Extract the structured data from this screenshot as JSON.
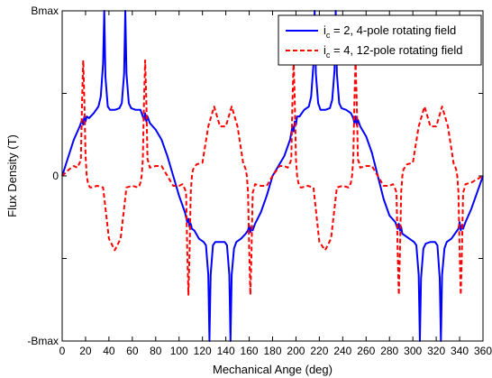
{
  "chart_data": {
    "type": "line",
    "title": "",
    "xlabel": "Mechanical Ange (deg)",
    "ylabel": "Flux Density (T)",
    "xlim": [
      0,
      360
    ],
    "ylim": [
      -1,
      1
    ],
    "x_ticks": [
      0,
      20,
      40,
      60,
      80,
      100,
      120,
      140,
      160,
      180,
      200,
      220,
      240,
      260,
      280,
      300,
      320,
      340,
      360
    ],
    "y_ticks": [
      {
        "value": 1,
        "label": "Bmax"
      },
      {
        "value": 0,
        "label": "0"
      },
      {
        "value": -1,
        "label": "-Bmax"
      }
    ],
    "y_minor_ticks": [
      0.5,
      -0.5
    ],
    "grid": false,
    "legend_position": "top-right",
    "series": [
      {
        "name": "ic = 2, 4-pole rotating field",
        "name_parts": {
          "pre": "i",
          "sub": "c",
          "post": " = 2, 4-pole rotating field"
        },
        "color": "#0000ff",
        "style": "solid",
        "x": [
          0,
          10,
          15,
          17,
          18,
          19,
          20,
          21,
          23,
          27,
          31,
          33,
          35,
          36,
          37,
          39,
          41,
          45,
          49,
          51,
          53,
          54,
          55,
          57,
          59,
          63,
          67,
          69,
          70,
          71,
          72,
          73,
          75,
          80,
          85,
          90,
          95,
          100,
          105,
          107,
          108,
          109,
          110,
          111,
          113,
          117,
          121,
          123,
          125,
          126,
          127,
          129,
          131,
          135,
          139,
          141,
          143,
          144,
          145,
          147,
          149,
          153,
          157,
          159,
          160,
          161,
          162,
          163,
          165,
          170,
          175,
          180,
          190,
          195,
          197,
          198,
          199,
          200,
          201,
          203,
          207,
          211,
          213,
          215,
          216,
          217,
          219,
          221,
          225,
          229,
          231,
          233,
          234,
          235,
          237,
          239,
          243,
          247,
          249,
          250,
          251,
          252,
          253,
          255,
          260,
          265,
          270,
          275,
          280,
          285,
          287,
          288,
          289,
          290,
          291,
          293,
          297,
          301,
          303,
          305,
          306,
          307,
          309,
          311,
          315,
          319,
          321,
          323,
          324,
          325,
          327,
          329,
          333,
          337,
          339,
          340,
          341,
          342,
          343,
          345,
          350,
          355,
          360
        ],
        "values": [
          0.0,
          0.22,
          0.3,
          0.34,
          0.31,
          0.36,
          0.33,
          0.36,
          0.35,
          0.38,
          0.42,
          0.48,
          0.68,
          1.0,
          0.6,
          0.42,
          0.4,
          0.4,
          0.41,
          0.44,
          0.62,
          1.0,
          0.62,
          0.44,
          0.41,
          0.4,
          0.4,
          0.36,
          0.34,
          0.38,
          0.33,
          0.36,
          0.32,
          0.28,
          0.22,
          0.12,
          0.0,
          -0.12,
          -0.22,
          -0.28,
          -0.26,
          -0.31,
          -0.29,
          -0.32,
          -0.33,
          -0.38,
          -0.4,
          -0.42,
          -0.6,
          -1.0,
          -0.6,
          -0.42,
          -0.4,
          -0.4,
          -0.4,
          -0.42,
          -0.6,
          -1.0,
          -0.6,
          -0.44,
          -0.4,
          -0.38,
          -0.35,
          -0.33,
          -0.3,
          -0.34,
          -0.31,
          -0.33,
          -0.29,
          -0.22,
          -0.12,
          0.0,
          0.12,
          0.22,
          0.3,
          0.27,
          0.33,
          0.31,
          0.36,
          0.36,
          0.4,
          0.42,
          0.48,
          0.68,
          1.0,
          0.62,
          0.44,
          0.4,
          0.4,
          0.41,
          0.46,
          0.64,
          1.0,
          0.62,
          0.44,
          0.41,
          0.4,
          0.38,
          0.35,
          0.32,
          0.36,
          0.31,
          0.34,
          0.3,
          0.24,
          0.14,
          0.0,
          -0.14,
          -0.24,
          -0.28,
          -0.32,
          -0.29,
          -0.33,
          -0.31,
          -0.35,
          -0.36,
          -0.38,
          -0.4,
          -0.42,
          -0.6,
          -1.0,
          -0.62,
          -0.44,
          -0.41,
          -0.4,
          -0.4,
          -0.42,
          -0.62,
          -1.0,
          -0.6,
          -0.44,
          -0.4,
          -0.38,
          -0.34,
          -0.32,
          -0.28,
          -0.33,
          -0.3,
          -0.32,
          -0.28,
          -0.2,
          -0.1,
          0.0
        ]
      },
      {
        "name": "ic = 4, 12-pole rotating field",
        "name_parts": {
          "pre": "i",
          "sub": "c",
          "post": " = 4, 12-pole rotating field"
        },
        "color": "#ff0000",
        "style": "dashed",
        "x": [
          0,
          6,
          10,
          13,
          15,
          16,
          17,
          18,
          19,
          20,
          21,
          22,
          23,
          24,
          25,
          30,
          35,
          40,
          45,
          50,
          55,
          60,
          65,
          66,
          67,
          68,
          69,
          70,
          71,
          72,
          73,
          74,
          75,
          80,
          85,
          90,
          95,
          100,
          103,
          105,
          106,
          107,
          108,
          109,
          110,
          111,
          112,
          113,
          114,
          115,
          120,
          125,
          130,
          135,
          140,
          145,
          150,
          155,
          156,
          157,
          158,
          159,
          160,
          161,
          162,
          163,
          164,
          165,
          170,
          175,
          180,
          186,
          190,
          193,
          195,
          196,
          197,
          198,
          199,
          200,
          201,
          202,
          203,
          204,
          205,
          210,
          215,
          220,
          225,
          230,
          235,
          240,
          245,
          246,
          247,
          248,
          249,
          250,
          251,
          252,
          253,
          254,
          255,
          260,
          265,
          270,
          275,
          280,
          283,
          285,
          286,
          287,
          288,
          289,
          290,
          291,
          292,
          293,
          294,
          295,
          300,
          305,
          310,
          315,
          320,
          325,
          330,
          335,
          336,
          337,
          338,
          339,
          340,
          341,
          342,
          343,
          344,
          345,
          350,
          355,
          360
        ],
        "values": [
          0.0,
          0.04,
          0.06,
          0.05,
          0.08,
          0.1,
          0.45,
          0.7,
          0.45,
          0.12,
          0.0,
          -0.04,
          -0.06,
          -0.07,
          -0.07,
          -0.06,
          -0.07,
          -0.38,
          -0.45,
          -0.38,
          -0.07,
          -0.06,
          -0.07,
          -0.06,
          -0.04,
          0.0,
          0.1,
          0.45,
          0.7,
          0.45,
          0.1,
          0.08,
          0.05,
          0.06,
          0.06,
          0.0,
          -0.06,
          -0.06,
          -0.05,
          -0.08,
          -0.1,
          -0.45,
          -0.72,
          -0.45,
          -0.1,
          0.0,
          0.04,
          0.05,
          0.06,
          0.07,
          0.08,
          0.3,
          0.42,
          0.3,
          0.3,
          0.42,
          0.3,
          0.07,
          0.06,
          0.04,
          0.0,
          -0.1,
          -0.45,
          -0.72,
          -0.45,
          -0.1,
          -0.08,
          -0.05,
          -0.06,
          -0.06,
          0.0,
          0.06,
          0.06,
          0.05,
          0.08,
          0.1,
          0.45,
          0.7,
          0.45,
          0.1,
          0.0,
          -0.04,
          -0.06,
          -0.07,
          -0.07,
          -0.06,
          -0.07,
          -0.4,
          -0.45,
          -0.38,
          -0.07,
          -0.06,
          -0.07,
          -0.06,
          -0.04,
          0.0,
          0.1,
          0.45,
          0.7,
          0.45,
          0.1,
          0.08,
          0.05,
          0.06,
          0.06,
          0.0,
          -0.06,
          -0.06,
          -0.05,
          -0.08,
          -0.1,
          -0.45,
          -0.72,
          -0.45,
          -0.1,
          0.0,
          0.04,
          0.05,
          0.06,
          0.07,
          0.08,
          0.3,
          0.42,
          0.3,
          0.3,
          0.42,
          0.3,
          0.07,
          0.06,
          0.04,
          0.0,
          -0.1,
          -0.45,
          -0.72,
          -0.45,
          -0.1,
          -0.08,
          -0.05,
          -0.04,
          -0.02,
          0.0
        ]
      }
    ]
  }
}
